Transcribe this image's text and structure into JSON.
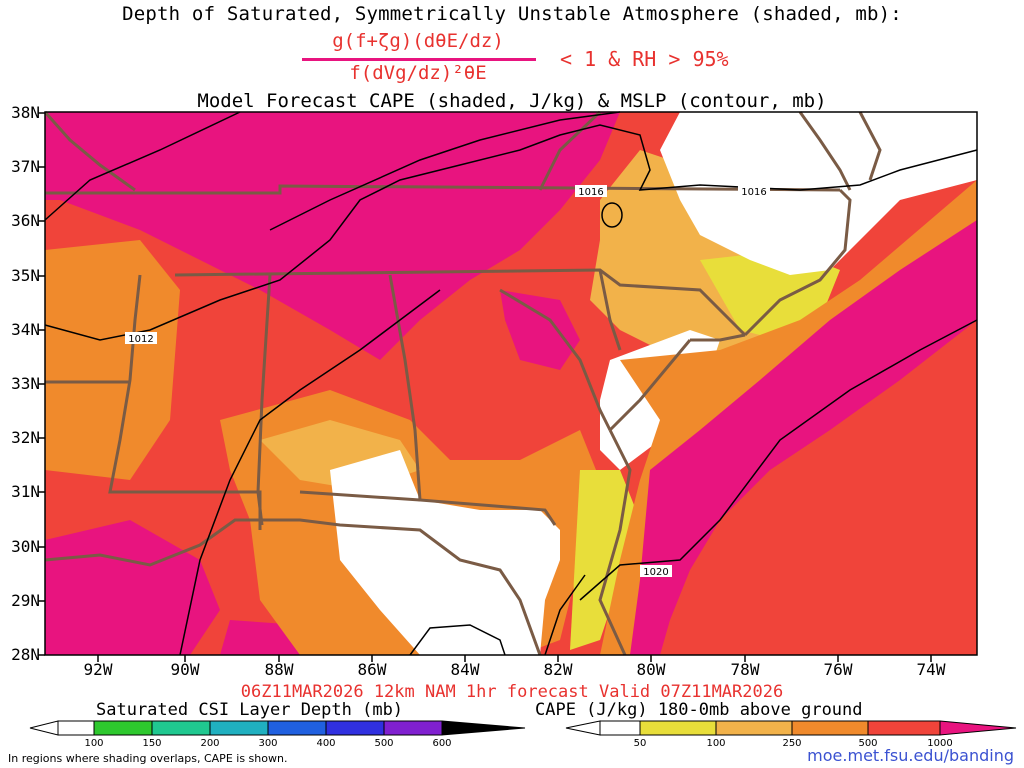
{
  "title": {
    "line1": "Depth of Saturated, Symmetrically Unstable Atmosphere (shaded, mb):",
    "numerator": "g(f+ζg)(dθE/dz)",
    "denominator": "f(dVg/dz)²θE",
    "condition": "< 1 & RH > 95%",
    "line3": "Model Forecast CAPE (shaded, J/kg) & MSLP (contour, mb)"
  },
  "map": {
    "lat_labels": [
      "38N",
      "37N",
      "36N",
      "35N",
      "34N",
      "33N",
      "32N",
      "31N",
      "30N",
      "29N",
      "28N"
    ],
    "lon_labels": [
      "92W",
      "90W",
      "88W",
      "86W",
      "84W",
      "82W",
      "80W",
      "78W",
      "76W",
      "74W"
    ],
    "isobar_labels": [
      "1016",
      "1016",
      "1012",
      "1020"
    ],
    "colors": {
      "border": "#7a5b45",
      "magenta": "#e8147f",
      "red": "#f0443a",
      "orange": "#f08a2c",
      "light_orange": "#f2b24a",
      "yellow": "#e8de3a"
    }
  },
  "valid_line": "06Z11MAR2026 12km NAM 1hr forecast Valid 07Z11MAR2026",
  "legend": {
    "csi_label": "Saturated CSI Layer Depth (mb)",
    "csi_ticks": [
      "100",
      "150",
      "200",
      "300",
      "400",
      "500",
      "600"
    ],
    "csi_colors": [
      "#ffffff",
      "#2ec82e",
      "#20c890",
      "#20b0c0",
      "#2060e0",
      "#3030e0",
      "#8020d0",
      "#000000"
    ],
    "cape_label": "CAPE (J/kg) 180-0mb above ground",
    "cape_ticks": [
      "50",
      "100",
      "250",
      "500",
      "1000"
    ],
    "cape_colors": [
      "#ffffff",
      "#e8de3a",
      "#f2b24a",
      "#f08a2c",
      "#f0443a",
      "#e8147f"
    ]
  },
  "footnote": "In regions where shading overlaps, CAPE is shown.",
  "url": "moe.met.fsu.edu/banding"
}
